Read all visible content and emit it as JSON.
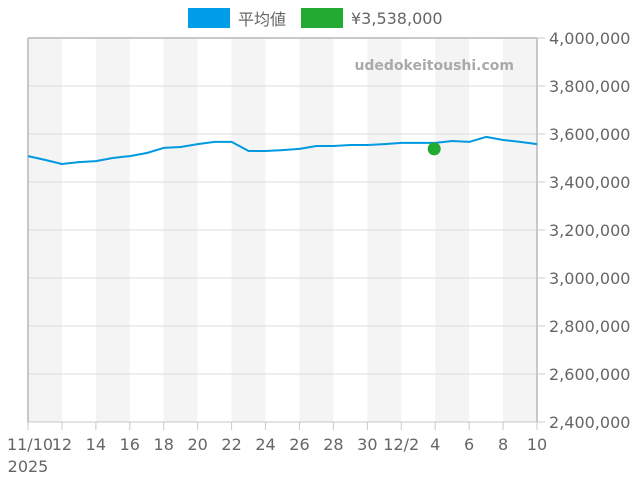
{
  "legend": {
    "items": [
      {
        "label": "平均値",
        "color": "#009EE8"
      },
      {
        "label": "¥3,538,000",
        "color": "#22AA33"
      }
    ]
  },
  "watermark": "udedokeitoushi.com",
  "colors": {
    "line": "#0099E0",
    "marker": "#22AA33",
    "stripe": "#F4F4F4",
    "grid": "#DDDDDD",
    "axis": "#C8C8C8",
    "text": "#666666"
  },
  "chart_data": {
    "type": "line",
    "title": "",
    "xlabel": "",
    "ylabel": "",
    "x_tick_labels": [
      "11/10",
      "12",
      "14",
      "16",
      "18",
      "20",
      "22",
      "24",
      "26",
      "28",
      "30",
      "12/2",
      "4",
      "6",
      "8",
      "10"
    ],
    "x_year_label": "2025",
    "y_tick_labels": [
      "4,000,000",
      "3,800,000",
      "3,600,000",
      "3,400,000",
      "3,200,000",
      "3,000,000",
      "2,800,000",
      "2,600,000",
      "2,400,000"
    ],
    "ylim": [
      2400000,
      4000000
    ],
    "y_axis_position": "right",
    "grid": true,
    "legend_position": "top",
    "x": [
      "2025-11-10",
      "2025-11-11",
      "2025-11-12",
      "2025-11-13",
      "2025-11-14",
      "2025-11-15",
      "2025-11-16",
      "2025-11-17",
      "2025-11-18",
      "2025-11-19",
      "2025-11-20",
      "2025-11-21",
      "2025-11-22",
      "2025-11-23",
      "2025-11-24",
      "2025-11-25",
      "2025-11-26",
      "2025-11-27",
      "2025-11-28",
      "2025-11-29",
      "2025-11-30",
      "2025-12-01",
      "2025-12-02",
      "2025-12-03",
      "2025-12-04",
      "2025-12-05",
      "2025-12-06",
      "2025-12-07",
      "2025-12-08",
      "2025-12-09",
      "2025-12-10"
    ],
    "series": [
      {
        "name": "平均値",
        "type": "line",
        "values": [
          3508000,
          3492000,
          3475000,
          3483000,
          3487000,
          3500000,
          3508000,
          3521000,
          3542000,
          3546000,
          3558000,
          3567000,
          3567000,
          3529000,
          3529000,
          3533000,
          3538000,
          3550000,
          3550000,
          3554000,
          3554000,
          3558000,
          3563000,
          3563000,
          3563000,
          3571000,
          3567000,
          3588000,
          3575000,
          3567000,
          3558000
        ]
      },
      {
        "name": "¥3,538,000",
        "type": "scatter",
        "points": [
          {
            "x": "2025-12-04",
            "y": 3538000
          }
        ]
      }
    ]
  }
}
